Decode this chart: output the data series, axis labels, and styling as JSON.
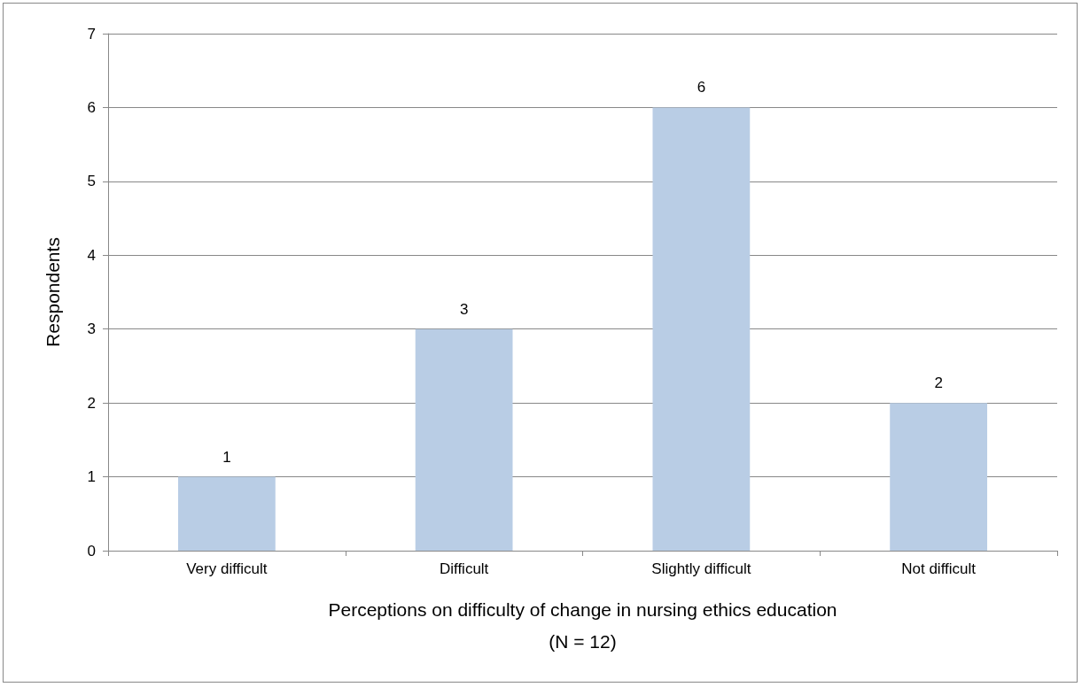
{
  "chart_data": {
    "type": "bar",
    "xlabel": "Perceptions on difficulty of change in nursing ethics education\n(N = 12)",
    "ylabel": "Respondents",
    "categories": [
      "Very difficult",
      "Difficult",
      "Slightly difficult",
      "Not difficult"
    ],
    "values": [
      1,
      3,
      6,
      2
    ],
    "color": "#b9cde5",
    "ylim": [
      0,
      7
    ],
    "yticks": [
      0,
      1,
      2,
      3,
      4,
      5,
      6,
      7
    ],
    "grid": "y",
    "data_labels": true
  }
}
